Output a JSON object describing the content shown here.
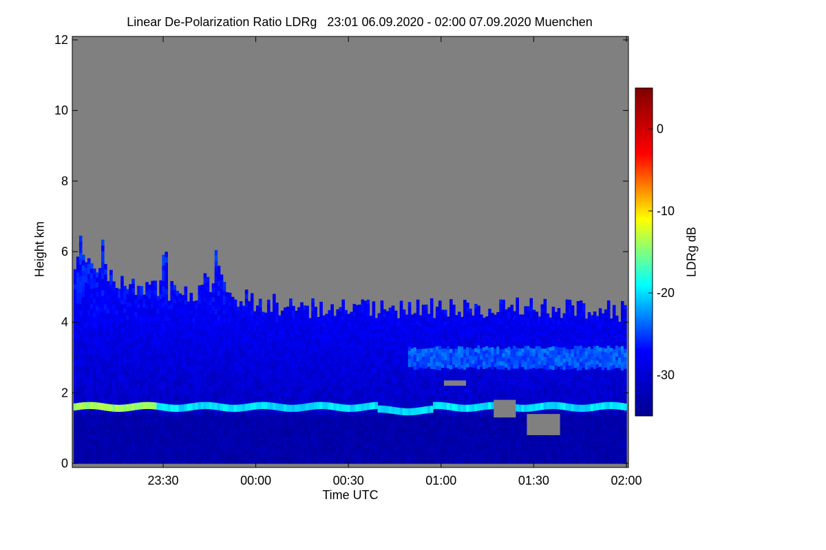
{
  "chart_data": {
    "type": "heatmap",
    "title": "Linear De-Polarization Ratio LDRg   23:01 06.09.2020 - 02:00 07.09.2020 Muenchen",
    "xlabel": "Time UTC",
    "ylabel": "Height km",
    "colorbar_label": "LDRg dB",
    "x_ticks": [
      "23:30",
      "00:00",
      "00:30",
      "01:00",
      "01:30",
      "02:00"
    ],
    "y_ticks": [
      0,
      2,
      4,
      6,
      8,
      10,
      12
    ],
    "ylim": [
      0,
      12
    ],
    "xlim": [
      "23:01",
      "02:00"
    ],
    "colorbar_ticks": [
      0,
      -10,
      -20,
      -30
    ],
    "colorbar_range": [
      -35,
      5
    ],
    "missing_color": "#808080",
    "colormap": [
      "#00008f",
      "#0000ff",
      "#00ffff",
      "#ffff00",
      "#ff0000",
      "#800000"
    ],
    "features": {
      "cloud_top_height_km": [
        [
          0,
          5.8
        ],
        [
          10,
          5.0
        ],
        [
          25,
          4.8
        ],
        [
          40,
          4.4
        ],
        [
          60,
          4.4
        ],
        [
          85,
          4.4
        ],
        [
          100,
          4.3
        ]
      ],
      "layer_height_km": 1.6,
      "layer_ldr_db": -20
    }
  }
}
